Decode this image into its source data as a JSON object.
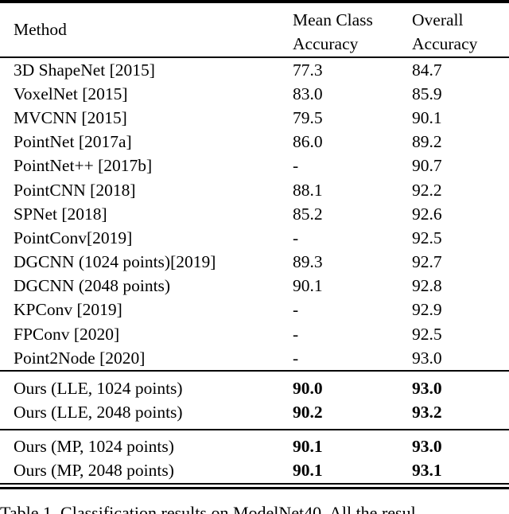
{
  "colors": {
    "text": "#000000",
    "background": "#ffffff",
    "rule": "#000000"
  },
  "table": {
    "header": {
      "method": "Method",
      "mean_class_line1": "Mean Class",
      "mean_class_line2": "Accuracy",
      "overall_line1": "Overall",
      "overall_line2": "Accuracy"
    },
    "sections": [
      {
        "name": "prior-methods",
        "bold_values": false,
        "rows": [
          {
            "method": "3D ShapeNet [2015]",
            "mean_class_accuracy": "77.3",
            "overall_accuracy": "84.7"
          },
          {
            "method": "VoxelNet [2015]",
            "mean_class_accuracy": "83.0",
            "overall_accuracy": "85.9"
          },
          {
            "method": "MVCNN [2015]",
            "mean_class_accuracy": "79.5",
            "overall_accuracy": "90.1"
          },
          {
            "method": "PointNet [2017a]",
            "mean_class_accuracy": "86.0",
            "overall_accuracy": "89.2"
          },
          {
            "method": "PointNet++ [2017b]",
            "mean_class_accuracy": "-",
            "overall_accuracy": "90.7"
          },
          {
            "method": "PointCNN [2018]",
            "mean_class_accuracy": "88.1",
            "overall_accuracy": "92.2"
          },
          {
            "method": "SPNet [2018]",
            "mean_class_accuracy": "85.2",
            "overall_accuracy": "92.6"
          },
          {
            "method": "PointConv[2019]",
            "mean_class_accuracy": "-",
            "overall_accuracy": "92.5"
          },
          {
            "method": "DGCNN (1024 points)[2019]",
            "mean_class_accuracy": "89.3",
            "overall_accuracy": "92.7"
          },
          {
            "method": "DGCNN (2048 points)",
            "mean_class_accuracy": "90.1",
            "overall_accuracy": "92.8"
          },
          {
            "method": "KPConv [2019]",
            "mean_class_accuracy": "-",
            "overall_accuracy": "92.9"
          },
          {
            "method": "FPConv [2020]",
            "mean_class_accuracy": "-",
            "overall_accuracy": "92.5"
          },
          {
            "method": "Point2Node [2020]",
            "mean_class_accuracy": "-",
            "overall_accuracy": "93.0"
          }
        ]
      },
      {
        "name": "ours-lle",
        "bold_values": true,
        "rows": [
          {
            "method": "Ours (LLE, 1024 points)",
            "mean_class_accuracy": "90.0",
            "overall_accuracy": "93.0"
          },
          {
            "method": "Ours (LLE, 2048 points)",
            "mean_class_accuracy": "90.2",
            "overall_accuracy": "93.2"
          }
        ]
      },
      {
        "name": "ours-mp",
        "bold_values": true,
        "rows": [
          {
            "method": "Ours (MP, 1024 points)",
            "mean_class_accuracy": "90.1",
            "overall_accuracy": "93.0"
          },
          {
            "method": "Ours (MP, 2048 points)",
            "mean_class_accuracy": "90.1",
            "overall_accuracy": "93.1"
          }
        ]
      }
    ]
  },
  "caption": "Table 1. Classification results on ModelNet40. All the resul"
}
